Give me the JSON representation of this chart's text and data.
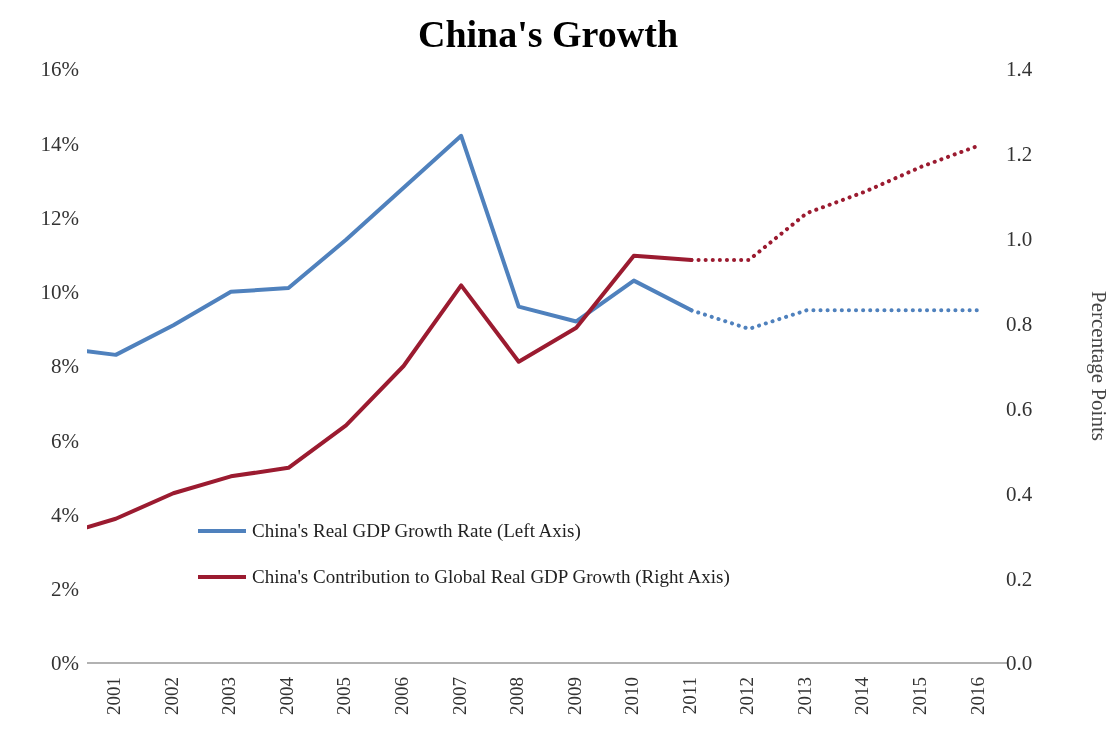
{
  "chart_data": {
    "type": "line",
    "title": "China's Growth",
    "y2label": "Percentage Points",
    "xlim": [
      2000.5,
      2016.5
    ],
    "xticks": [
      2001,
      2002,
      2003,
      2004,
      2005,
      2006,
      2007,
      2008,
      2009,
      2010,
      2011,
      2012,
      2013,
      2014,
      2015,
      2016
    ],
    "ylim": [
      0,
      16
    ],
    "yticks": [
      {
        "value": 0,
        "label": "0%"
      },
      {
        "value": 2,
        "label": "2%"
      },
      {
        "value": 4,
        "label": "4%"
      },
      {
        "value": 6,
        "label": "6%"
      },
      {
        "value": 8,
        "label": "8%"
      },
      {
        "value": 10,
        "label": "10%"
      },
      {
        "value": 12,
        "label": "12%"
      },
      {
        "value": 14,
        "label": "14%"
      },
      {
        "value": 16,
        "label": "16%"
      }
    ],
    "y2lim": [
      0,
      1.4
    ],
    "y2ticks": [
      {
        "value": 0,
        "label": "0.0"
      },
      {
        "value": 0.2,
        "label": "0.2"
      },
      {
        "value": 0.4,
        "label": "0.4"
      },
      {
        "value": 0.6,
        "label": "0.6"
      },
      {
        "value": 0.8,
        "label": "0.8"
      },
      {
        "value": 1,
        "label": "1.0"
      },
      {
        "value": 1.2,
        "label": "1.2"
      },
      {
        "value": 1.4,
        "label": "1.4"
      }
    ],
    "grid": false,
    "legend": "bottom",
    "marker": "none",
    "series": [
      {
        "name": "China's Real GDP Growth Rate (Left Axis)",
        "color": "#4f81bd",
        "line_style": "solid",
        "x": [
          2000.5,
          2001,
          2002,
          2003,
          2004,
          2005,
          2006,
          2007,
          2008,
          2009,
          2010,
          2011
        ],
        "values": [
          8.4,
          8.3,
          9.1,
          10.0,
          10.1,
          11.4,
          12.8,
          14.2,
          9.6,
          9.2,
          10.3,
          9.5
        ]
      },
      {
        "color": "#4f81bd",
        "line_style": "dotted",
        "x": [
          2011,
          2012,
          2013,
          2014,
          2015,
          2016
        ],
        "values": [
          9.5,
          9.0,
          9.5,
          9.5,
          9.5,
          9.5
        ]
      },
      {
        "name": "China's Contribution to Global Real GDP Growth (Right Axis)",
        "color": "#9b1b30",
        "axis": "y2",
        "line_style": "solid",
        "x": [
          2000.5,
          2001,
          2002,
          2003,
          2004,
          2005,
          2006,
          2007,
          2008,
          2009,
          2010,
          2011
        ],
        "values": [
          0.32,
          0.34,
          0.4,
          0.44,
          0.46,
          0.56,
          0.7,
          0.89,
          0.71,
          0.79,
          0.96,
          0.95
        ]
      },
      {
        "color": "#9b1b30",
        "axis": "y2",
        "line_style": "dotted",
        "x": [
          2011,
          2012,
          2013,
          2014,
          2015,
          2016
        ],
        "values": [
          0.95,
          0.95,
          1.06,
          1.11,
          1.17,
          1.22
        ]
      }
    ]
  }
}
